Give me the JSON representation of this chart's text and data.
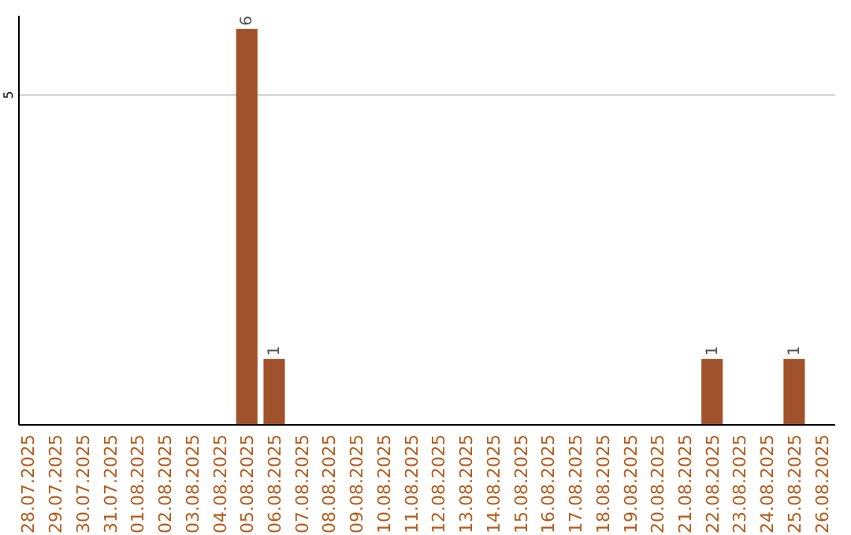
{
  "chart_data": {
    "type": "bar",
    "categories": [
      "28.07.2025",
      "29.07.2025",
      "30.07.2025",
      "31.07.2025",
      "01.08.2025",
      "02.08.2025",
      "03.08.2025",
      "04.08.2025",
      "05.08.2025",
      "06.08.2025",
      "07.08.2025",
      "08.08.2025",
      "09.08.2025",
      "10.08.2025",
      "11.08.2025",
      "12.08.2025",
      "13.08.2025",
      "14.08.2025",
      "15.08.2025",
      "16.08.2025",
      "17.08.2025",
      "18.08.2025",
      "19.08.2025",
      "20.08.2025",
      "21.08.2025",
      "22.08.2025",
      "23.08.2025",
      "24.08.2025",
      "25.08.2025",
      "26.08.2025"
    ],
    "values": [
      0,
      0,
      0,
      0,
      0,
      0,
      0,
      0,
      6,
      1,
      0,
      0,
      0,
      0,
      0,
      0,
      0,
      0,
      0,
      0,
      0,
      0,
      0,
      0,
      0,
      1,
      0,
      0,
      1,
      0
    ],
    "value_labels": [
      null,
      null,
      null,
      null,
      null,
      null,
      null,
      null,
      "6",
      "1",
      null,
      null,
      null,
      null,
      null,
      null,
      null,
      null,
      null,
      null,
      null,
      null,
      null,
      null,
      null,
      "1",
      null,
      null,
      "1",
      null
    ],
    "color": "#a0522d",
    "ylim": [
      0,
      6.2
    ],
    "yticks": [
      5
    ],
    "grid": "y"
  }
}
